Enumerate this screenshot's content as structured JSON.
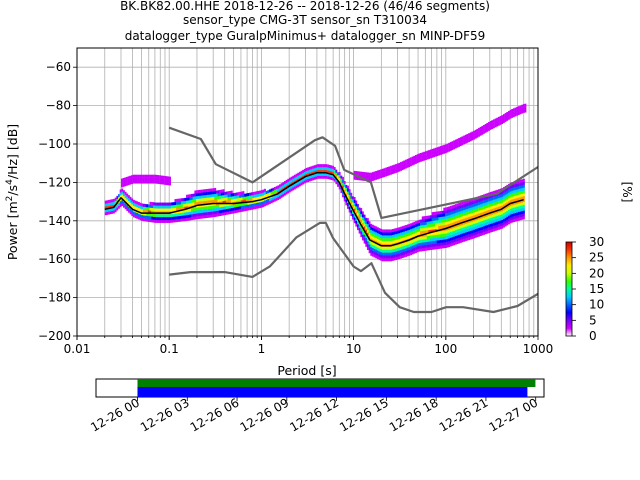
{
  "header": {
    "title_line1": "BK.BK82.00.HHE   2018-12-26 -- 2018-12-26  (46/46 segments)",
    "title_line2": "sensor_type CMG-3T sensor_sn T310034",
    "title_line3": "datalogger_type GuralpMinimus+ datalogger_sn MINP-DF59"
  },
  "chart_data": [
    {
      "type": "heatmap",
      "title": "BK.BK82.00.HHE   2018-12-26 -- 2018-12-26  (46/46 segments)",
      "xlabel": "Period [s]",
      "ylabel": "Power [m²/s⁴/Hz] [dB]",
      "x_scale": "log",
      "xlim": [
        0.01,
        1000
      ],
      "ylim": [
        -200,
        -50
      ],
      "x_ticks": [
        "0.01",
        "0.1",
        "1",
        "10",
        "100",
        "1000"
      ],
      "y_ticks": [
        "−200",
        "−180",
        "−160",
        "−140",
        "−120",
        "−100",
        "−80",
        "−60"
      ],
      "grid": true,
      "colorbar": {
        "label": "[%]",
        "ticks": [
          "0",
          "5",
          "10",
          "15",
          "20",
          "25",
          "30"
        ],
        "range": [
          0,
          30
        ],
        "colormap": [
          "#ffffff",
          "#cc00ff",
          "#7700ff",
          "#0000ff",
          "#0066ff",
          "#00ccff",
          "#00ff99",
          "#33ff00",
          "#ccff00",
          "#ffee00",
          "#ff9900",
          "#ff3300",
          "#cc0000"
        ]
      },
      "series": [
        {
          "name": "mean",
          "color": "#000000",
          "x": [
            0.02,
            0.025,
            0.03,
            0.04,
            0.05,
            0.07,
            0.1,
            0.15,
            0.2,
            0.3,
            0.5,
            0.8,
            1,
            1.5,
            2,
            3,
            4,
            5,
            6,
            7,
            8,
            10,
            12,
            15,
            20,
            25,
            30,
            40,
            50,
            70,
            100,
            150,
            200,
            300,
            400,
            500,
            700
          ],
          "y": [
            -134,
            -133,
            -128,
            -134,
            -136,
            -136,
            -136,
            -134,
            -132,
            -131,
            -131,
            -130,
            -129,
            -126,
            -122,
            -117,
            -115,
            -115,
            -116,
            -120,
            -126,
            -135,
            -142,
            -150,
            -153,
            -153,
            -152,
            -150,
            -148,
            -146,
            -144,
            -141,
            -139,
            -136,
            -134,
            -131,
            -129
          ]
        },
        {
          "name": "high noise model",
          "color": "#666666",
          "x": [
            0.1,
            0.22,
            0.32,
            0.8,
            3.8,
            4.6,
            6.3,
            7.9,
            15.4,
            20,
            354.8,
            1000
          ],
          "y": [
            -91.5,
            -97.4,
            -110.5,
            -120,
            -98,
            -96.5,
            -101,
            -113.5,
            -120,
            -138.5,
            -126,
            -112
          ]
        },
        {
          "name": "low noise model",
          "color": "#666666",
          "x": [
            0.1,
            0.17,
            0.4,
            0.8,
            1.24,
            2.4,
            4.3,
            5,
            6,
            10,
            12,
            15.6,
            21.9,
            31.6,
            45,
            70,
            101,
            154,
            328,
            600,
            1000
          ],
          "y": [
            -168,
            -166.7,
            -166.7,
            -169.2,
            -163.7,
            -148.6,
            -141.1,
            -141.1,
            -149,
            -163.8,
            -166.2,
            -162.1,
            -177.5,
            -185,
            -187.5,
            -187.5,
            -185,
            -185,
            -187.5,
            -184.4,
            -178
          ]
        }
      ],
      "density_bands": [
        {
          "name": "main",
          "x": [
            0.02,
            0.025,
            0.03,
            0.04,
            0.05,
            0.07,
            0.1,
            0.15,
            0.2,
            0.3,
            0.5,
            0.8,
            1,
            1.5,
            2,
            3,
            4,
            5,
            6,
            7,
            8,
            10,
            12,
            15,
            20,
            25,
            30,
            40,
            50,
            70,
            100,
            150,
            200,
            300,
            400,
            500,
            700
          ],
          "y": [
            -134,
            -133,
            -128,
            -134,
            -136,
            -136,
            -136,
            -134,
            -132,
            -131,
            -131,
            -130,
            -129,
            -126,
            -122,
            -117,
            -115,
            -115,
            -116,
            -120,
            -126,
            -135,
            -142,
            -150,
            -153,
            -153,
            -152,
            -150,
            -148,
            -146,
            -144,
            -141,
            -139,
            -136,
            -134,
            -131,
            -129
          ],
          "spread": [
            3,
            3,
            4,
            4,
            4,
            5,
            5,
            6,
            7,
            7,
            5,
            4,
            4,
            3,
            3,
            3,
            3,
            3,
            3,
            4,
            5,
            6,
            7,
            8,
            8,
            8,
            8,
            8,
            8,
            9,
            10,
            10,
            10,
            10,
            10,
            10,
            10
          ]
        },
        {
          "name": "upper-branch",
          "x": [
            0.03,
            0.04,
            0.05,
            0.07,
            0.1
          ],
          "y": [
            -121,
            -119,
            -119,
            -119,
            -120
          ],
          "spread": [
            1.5,
            1.5,
            1.5,
            1.5,
            1.5
          ]
        },
        {
          "name": "microseism-tail",
          "x": [
            10,
            15,
            20,
            30,
            50,
            100,
            200,
            300,
            400,
            500,
            700
          ],
          "y": [
            -117,
            -118,
            -116,
            -113,
            -108,
            -103,
            -96,
            -91,
            -88,
            -85,
            -82
          ],
          "spread": [
            1.5,
            1.5,
            1.5,
            1.5,
            1.5,
            1.5,
            1.5,
            1.5,
            1.5,
            1.5,
            1.5
          ]
        }
      ]
    },
    {
      "type": "timeline",
      "x_ticks": [
        "12-26 00",
        "12-26 03",
        "12-26 06",
        "12-26 09",
        "12-26 12",
        "12-26 15",
        "12-26 18",
        "12-26 21",
        "12-27 00"
      ],
      "xlim": [
        "2018-12-25 21:30",
        "2018-12-27 00:30"
      ],
      "bars": [
        {
          "name": "data",
          "color": "#008000",
          "start": "2018-12-26 00:00",
          "end": "2018-12-26 23:59"
        },
        {
          "name": "psd",
          "color": "#0000ff",
          "start": "2018-12-26 00:00",
          "end": "2018-12-26 23:30"
        }
      ]
    }
  ]
}
